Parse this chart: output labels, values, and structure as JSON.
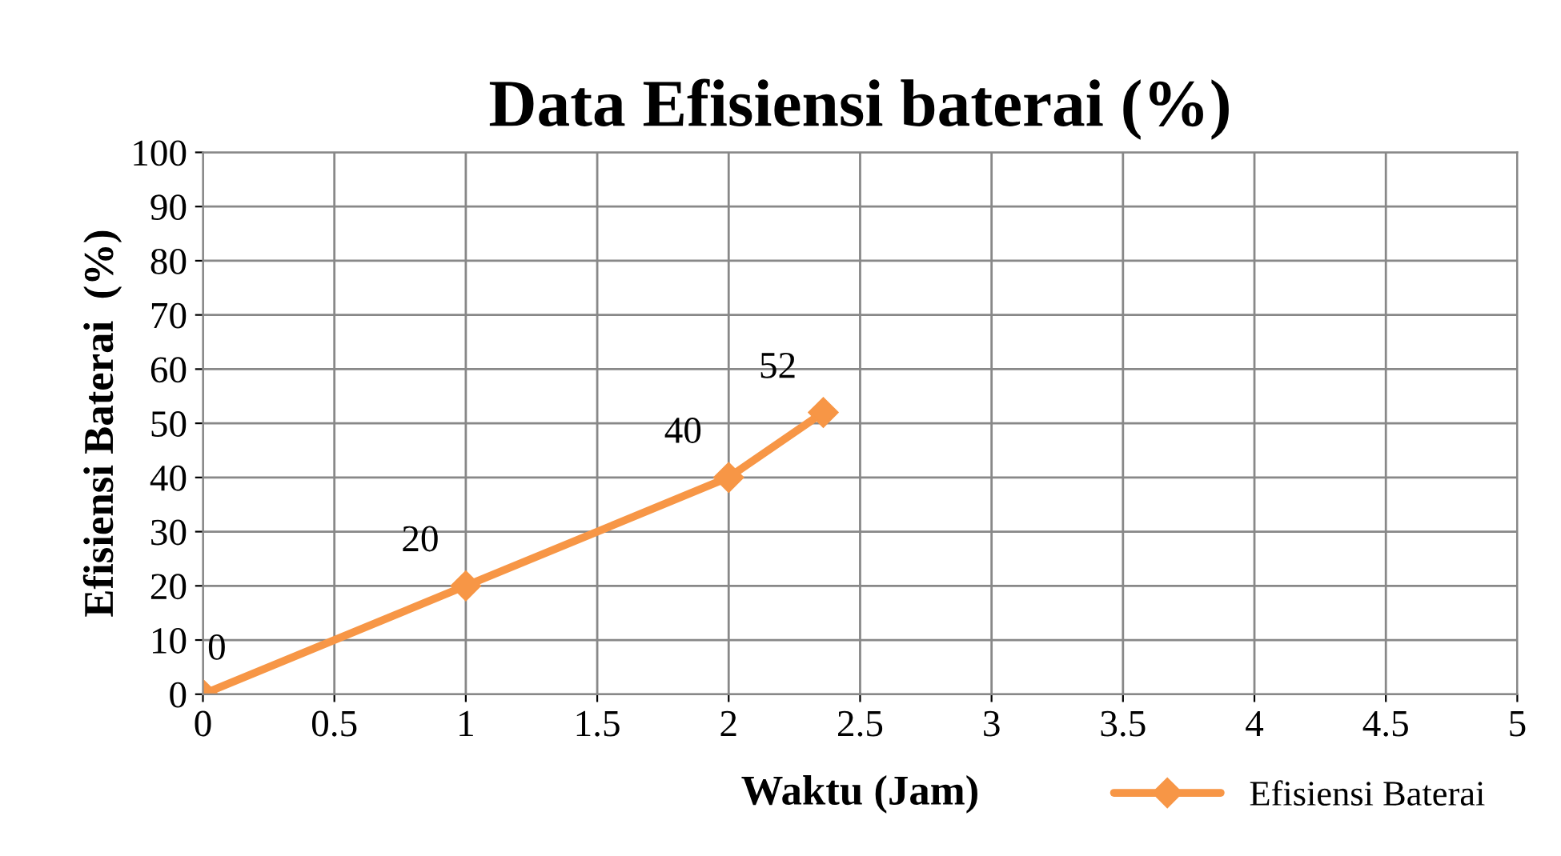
{
  "chart_data": {
    "type": "line",
    "title": "Data Efisiensi baterai (%)",
    "xlabel": "Waktu (Jam)",
    "ylabel": "Efisiensi Baterai  (%)",
    "x": [
      0,
      1,
      2,
      2.36
    ],
    "series": [
      {
        "name": "Efisiensi Baterai",
        "color": "#f79646",
        "values": [
          0,
          20,
          40,
          52
        ]
      }
    ],
    "xlim": [
      0,
      5
    ],
    "xticks": [
      0,
      0.5,
      1,
      1.5,
      2,
      2.5,
      3,
      3.5,
      4,
      4.5,
      5
    ],
    "ylim": [
      0,
      100
    ],
    "yticks": [
      0,
      10,
      20,
      30,
      40,
      50,
      60,
      70,
      80,
      90,
      100
    ],
    "grid": true,
    "legend": "bottom right",
    "marker": "diamond",
    "line_style": "solid",
    "data_labels": true
  }
}
